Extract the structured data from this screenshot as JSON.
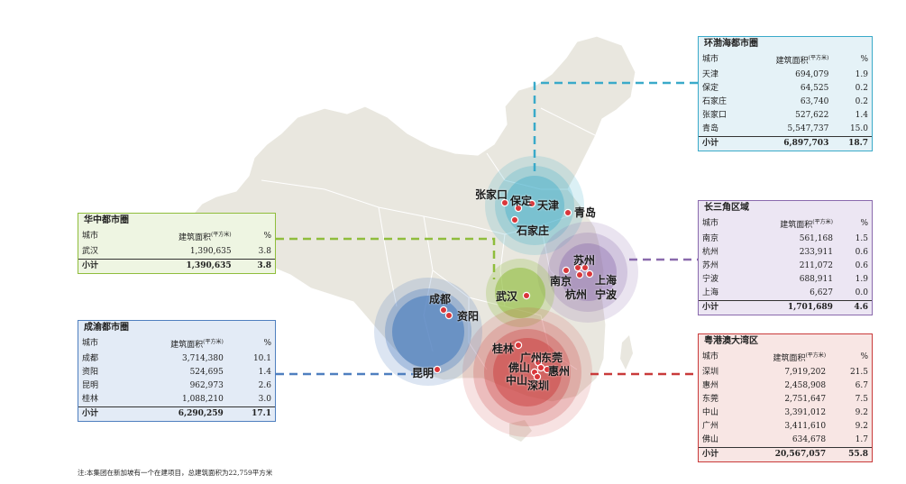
{
  "colors": {
    "bohai": "#3aaac9",
    "central": "#8fbd3c",
    "yangtze": "#8a6aad",
    "chengyu": "#4f7fbf",
    "greaterbay": "#c93a3a",
    "map": "#e9e7df"
  },
  "regions": {
    "bohai": {
      "title": "环渤海都市圈",
      "head": {
        "city": "城市",
        "area": "建筑面积",
        "unit": "(平方米)",
        "pct": "%"
      },
      "rows": [
        {
          "city": "天津",
          "area": "694,079",
          "pct": "1.9"
        },
        {
          "city": "保定",
          "area": "64,525",
          "pct": "0.2"
        },
        {
          "city": "石家庄",
          "area": "63,740",
          "pct": "0.2"
        },
        {
          "city": "张家口",
          "area": "527,622",
          "pct": "1.4"
        },
        {
          "city": "青岛",
          "area": "5,547,737",
          "pct": "15.0"
        }
      ],
      "subtotal": {
        "label": "小计",
        "area": "6,897,703",
        "pct": "18.7"
      }
    },
    "central": {
      "title": "华中都市圈",
      "head": {
        "city": "城市",
        "area": "建筑面积",
        "unit": "(平方米)",
        "pct": "%"
      },
      "rows": [
        {
          "city": "武汉",
          "area": "1,390,635",
          "pct": "3.8"
        }
      ],
      "subtotal": {
        "label": "小计",
        "area": "1,390,635",
        "pct": "3.8"
      }
    },
    "yangtze": {
      "title": "长三角区域",
      "head": {
        "city": "城市",
        "area": "建筑面积",
        "unit": "(平方米)",
        "pct": "%"
      },
      "rows": [
        {
          "city": "南京",
          "area": "561,168",
          "pct": "1.5"
        },
        {
          "city": "杭州",
          "area": "233,911",
          "pct": "0.6"
        },
        {
          "city": "苏州",
          "area": "211,072",
          "pct": "0.6"
        },
        {
          "city": "宁波",
          "area": "688,911",
          "pct": "1.9"
        },
        {
          "city": "上海",
          "area": "6,627",
          "pct": "0.0"
        }
      ],
      "subtotal": {
        "label": "小计",
        "area": "1,701,689",
        "pct": "4.6"
      }
    },
    "chengyu": {
      "title": "成渝都市圈",
      "head": {
        "city": "城市",
        "area": "建筑面积",
        "unit": "(平方米)",
        "pct": "%"
      },
      "rows": [
        {
          "city": "成都",
          "area": "3,714,380",
          "pct": "10.1"
        },
        {
          "city": "资阳",
          "area": "524,695",
          "pct": "1.4"
        },
        {
          "city": "昆明",
          "area": "962,973",
          "pct": "2.6"
        },
        {
          "city": "桂林",
          "area": "1,088,210",
          "pct": "3.0"
        }
      ],
      "subtotal": {
        "label": "小计",
        "area": "6,290,259",
        "pct": "17.1"
      }
    },
    "greaterbay": {
      "title": "粤港澳大湾区",
      "head": {
        "city": "城市",
        "area": "建筑面积",
        "unit": "(平方米)",
        "pct": "%"
      },
      "rows": [
        {
          "city": "深圳",
          "area": "7,919,202",
          "pct": "21.5"
        },
        {
          "city": "惠州",
          "area": "2,458,908",
          "pct": "6.7"
        },
        {
          "city": "东莞",
          "area": "2,751,647",
          "pct": "7.5"
        },
        {
          "city": "中山",
          "area": "3,391,012",
          "pct": "9.2"
        },
        {
          "city": "广州",
          "area": "3,411,610",
          "pct": "9.2"
        },
        {
          "city": "佛山",
          "area": "634,678",
          "pct": "1.7"
        }
      ],
      "subtotal": {
        "label": "小计",
        "area": "20,567,057",
        "pct": "55.8"
      }
    }
  },
  "map_labels": {
    "zhangjiakou": "张家口",
    "baoding": "保定",
    "tianjin": "天津",
    "shijiazhuang": "石家庄",
    "qingdao": "青岛",
    "suzhou": "苏州",
    "nanjing": "南京",
    "shanghai": "上海",
    "hangzhou": "杭州",
    "ningbo": "宁波",
    "wuhan": "武汉",
    "chengdu": "成都",
    "ziyang": "资阳",
    "kunming": "昆明",
    "guilin": "桂林",
    "guangzhou": "广州",
    "dongguan": "东莞",
    "foshan": "佛山",
    "huizhou": "惠州",
    "zhongshan": "中山",
    "shenzhen": "深圳"
  },
  "note": "注:本集团在新加坡有一个在建项目，总建筑面积为22,759平方米"
}
